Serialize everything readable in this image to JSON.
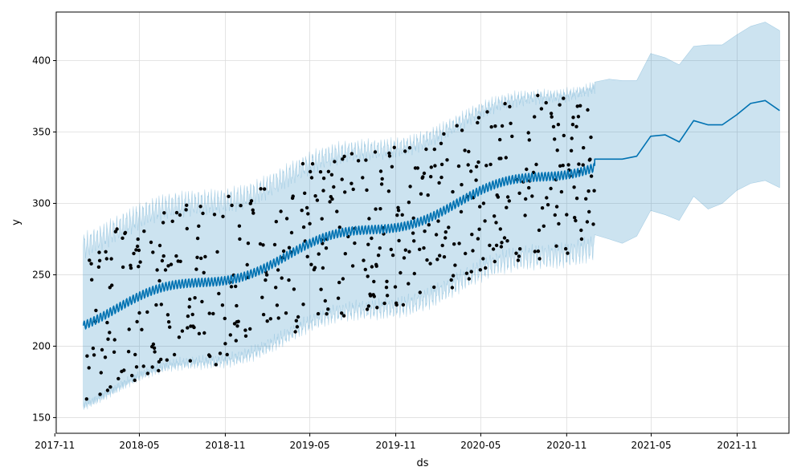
{
  "chart_data": {
    "type": "line",
    "title": "",
    "xlabel": "ds",
    "ylabel": "y",
    "xlim": [
      "2017-11-04",
      "2022-02-20"
    ],
    "ylim": [
      139,
      434
    ],
    "grid": true,
    "legend": "none",
    "x_ticks": [
      {
        "date": "2017-11-01",
        "label": "2017-11"
      },
      {
        "date": "2018-05-01",
        "label": "2018-05"
      },
      {
        "date": "2018-11-01",
        "label": "2018-11"
      },
      {
        "date": "2019-05-01",
        "label": "2019-05"
      },
      {
        "date": "2019-11-01",
        "label": "2019-11"
      },
      {
        "date": "2020-05-01",
        "label": "2020-05"
      },
      {
        "date": "2020-11-01",
        "label": "2020-11"
      },
      {
        "date": "2021-05-01",
        "label": "2021-05"
      },
      {
        "date": "2021-11-01",
        "label": "2021-11"
      }
    ],
    "y_ticks": [
      150,
      200,
      250,
      300,
      350,
      400
    ],
    "colors": {
      "observed": "#000000",
      "forecast": "#0072B2",
      "interval": "#0072B2",
      "grid": "#dddddd"
    },
    "history": {
      "start": "2018-01-01",
      "end": "2020-12-31",
      "trend_start": 219,
      "trend_end": 330,
      "interval_half_width": 56,
      "observed_spread": 58
    },
    "series": [
      {
        "type": "forecast",
        "x": [
          "2020-12-31",
          "2021-01-31",
          "2021-02-28",
          "2021-03-31",
          "2021-04-30",
          "2021-05-31",
          "2021-06-30",
          "2021-07-31",
          "2021-08-31",
          "2021-09-30",
          "2021-10-31",
          "2021-11-30",
          "2021-12-31",
          "2022-01-31"
        ],
        "yhat": [
          331,
          331,
          331,
          333,
          347,
          348,
          343,
          358,
          355,
          355,
          362,
          370,
          372,
          365
        ],
        "yhat_lower": [
          278,
          275,
          272,
          277,
          295,
          292,
          288,
          305,
          296,
          300,
          309,
          314,
          316,
          311
        ],
        "yhat_upper": [
          385,
          387,
          386,
          386,
          405,
          402,
          397,
          410,
          411,
          411,
          418,
          424,
          427,
          421
        ]
      }
    ]
  }
}
